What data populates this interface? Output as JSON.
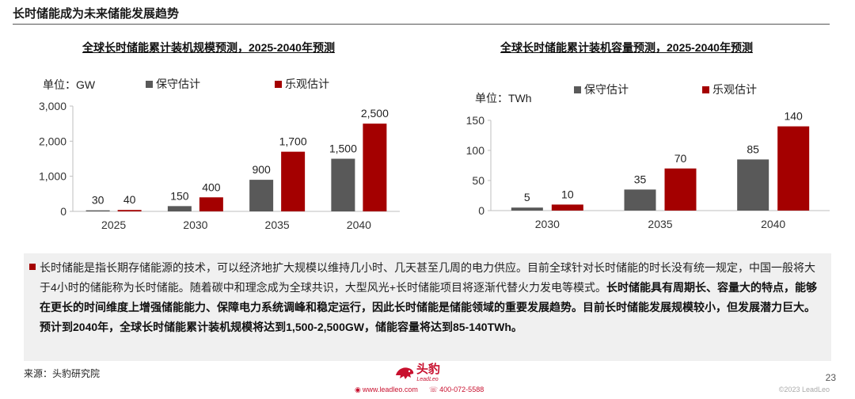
{
  "page": {
    "title": "长时储能成为未来储能发展趋势",
    "page_number": "23",
    "copyright": "©2023 LeadLeo"
  },
  "charts": {
    "capacity": {
      "title": "全球长时储能累计装机规模预测，2025-2040年预测",
      "unit": "单位：GW"
    },
    "energy": {
      "title": "全球长时储能累计装机容量预测，2025-2040年预测",
      "unit": "单位：TWh"
    }
  },
  "legend": {
    "conservative": "保守估计",
    "optimistic": "乐观估计"
  },
  "colors": {
    "conservative": "#595959",
    "optimistic": "#a40000",
    "accent": "#c8102e"
  },
  "chart_data": [
    {
      "type": "bar",
      "title": "全球长时储能累计装机规模预测，2025-2040年预测",
      "ylabel": "单位：GW",
      "categories": [
        "2025",
        "2030",
        "2035",
        "2040"
      ],
      "series": [
        {
          "name": "保守估计",
          "values": [
            30,
            150,
            900,
            1500
          ]
        },
        {
          "name": "乐观估计",
          "values": [
            40,
            400,
            1700,
            2500
          ]
        }
      ],
      "data_labels": [
        [
          "30",
          "150",
          "900",
          "1,500"
        ],
        [
          "40",
          "400",
          "1,700",
          "2,500"
        ]
      ],
      "ylim": [
        0,
        3000
      ],
      "yticks": [
        0,
        1000,
        2000,
        3000
      ],
      "ytick_labels": [
        "0",
        "1,000",
        "2,000",
        "3,000"
      ],
      "grid": false,
      "legend": "top"
    },
    {
      "type": "bar",
      "title": "全球长时储能累计装机容量预测，2025-2040年预测",
      "ylabel": "单位：TWh",
      "categories": [
        "2030",
        "2035",
        "2040"
      ],
      "series": [
        {
          "name": "保守估计",
          "values": [
            5,
            35,
            85
          ]
        },
        {
          "name": "乐观估计",
          "values": [
            10,
            70,
            140
          ]
        }
      ],
      "data_labels": [
        [
          "5",
          "35",
          "85"
        ],
        [
          "10",
          "70",
          "140"
        ]
      ],
      "ylim": [
        0,
        150
      ],
      "yticks": [
        0,
        50,
        100,
        150
      ],
      "ytick_labels": [
        "0",
        "50",
        "100",
        "150"
      ],
      "grid": false,
      "legend": "top"
    }
  ],
  "description": {
    "normal": "长时储能是指长期存储能源的技术，可以经济地扩大规模以维持几小时、几天甚至几周的电力供应。目前全球针对长时储能的时长没有统一规定，中国一般将大于4小时的储能称为长时储能。随着碳中和理念成为全球共识，大型风光+长时储能项目将逐渐代替火力发电等模式。",
    "bold": "长时储能具有周期长、容量大的特点，能够在更长的时间维度上增强储能能力、保障电力系统调峰和稳定运行，因此长时储能是储能领域的重要发展趋势。目前长时储能发展规模较小，但发展潜力巨大。预计到2040年，全球长时储能累计装机规模将达到1,500-2,500GW，储能容量将达到85-140TWh。"
  },
  "footer": {
    "source": "来源：头豹研究院",
    "logo_text": "头豹",
    "logo_sub": "LeadLeo",
    "website": "www.leadleo.com",
    "phone": "400-072-5588"
  }
}
